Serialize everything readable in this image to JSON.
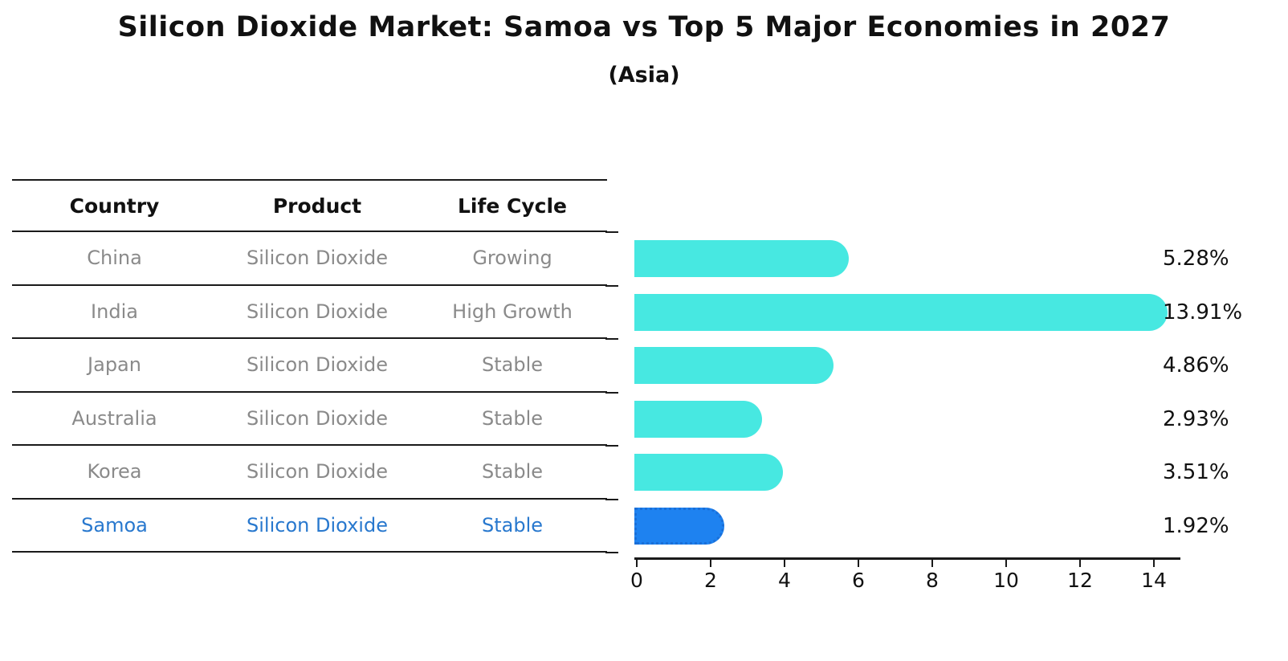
{
  "chart_data": {
    "type": "bar",
    "orientation": "horizontal",
    "title": "Silicon Dioxide Market: Samoa vs Top 5 Major Economies in 2027",
    "subtitle": "(Asia)",
    "categories": [
      "China",
      "India",
      "Japan",
      "Australia",
      "Korea",
      "Samoa"
    ],
    "values": [
      5.28,
      13.91,
      4.86,
      2.93,
      3.51,
      1.92
    ],
    "value_labels": [
      "5.28%",
      "13.91%",
      "4.86%",
      "2.93%",
      "3.51%",
      "1.92%"
    ],
    "highlight_category": "Samoa",
    "xlabel": "",
    "ylabel": "",
    "xlim": [
      0,
      14.7
    ],
    "x_ticks": [
      0,
      2,
      4,
      6,
      8,
      10,
      12,
      14
    ],
    "x_tick_labels": [
      "0",
      "2",
      "4",
      "6",
      "8",
      "10",
      "12",
      "14"
    ],
    "grid": false,
    "legend": false,
    "bar_color": "#47e8e1",
    "highlight_bar_color": "#1e82f0"
  },
  "table": {
    "headers": [
      "Country",
      "Product",
      "Life Cycle"
    ],
    "rows": [
      {
        "country": "China",
        "product": "Silicon Dioxide",
        "life_cycle": "Growing",
        "highlight": false
      },
      {
        "country": "India",
        "product": "Silicon Dioxide",
        "life_cycle": "High Growth",
        "highlight": false
      },
      {
        "country": "Japan",
        "product": "Silicon Dioxide",
        "life_cycle": "Stable",
        "highlight": false
      },
      {
        "country": "Australia",
        "product": "Silicon Dioxide",
        "life_cycle": "Stable",
        "highlight": false
      },
      {
        "country": "Korea",
        "product": "Silicon Dioxide",
        "life_cycle": "Stable",
        "highlight": false
      },
      {
        "country": "Samoa",
        "product": "Silicon Dioxide",
        "life_cycle": "Stable",
        "highlight": true
      }
    ]
  },
  "colors": {
    "bar_default": "#47e8e1",
    "bar_highlight": "#1e82f0",
    "highlight_text": "#2878ce",
    "row_text": "#8a8a8a",
    "axis_line": "#1a1a1a",
    "title_text": "#111111"
  }
}
